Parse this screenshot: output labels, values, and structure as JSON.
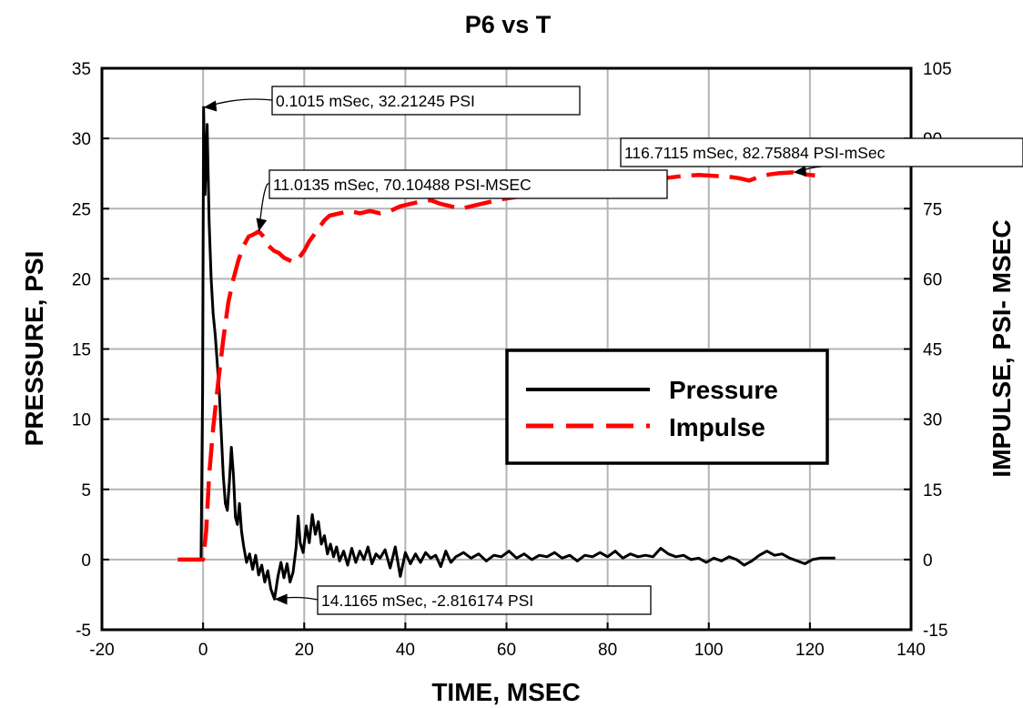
{
  "chart_data": {
    "type": "line",
    "title": "P6 vs T",
    "xlabel": "TIME, MSEC",
    "ylabel": "PRESSURE, PSI",
    "y2label": "IMPULSE, PSI- MSEC",
    "xlim": [
      -20,
      140
    ],
    "ylim": [
      -5,
      35
    ],
    "y2lim": [
      -15,
      105
    ],
    "x_ticks": [
      "-20",
      "0",
      "20",
      "40",
      "60",
      "80",
      "100",
      "120",
      "140"
    ],
    "y_ticks": [
      "-5",
      "0",
      "5",
      "10",
      "15",
      "20",
      "25",
      "30",
      "35"
    ],
    "y2_ticks": [
      "-15",
      "0",
      "15",
      "30",
      "45",
      "60",
      "75",
      "90",
      "105"
    ],
    "grid": true,
    "legend_position": "center-right",
    "series": [
      {
        "name": "Pressure",
        "axis": "left",
        "color": "#000000",
        "style": "solid",
        "points": [
          [
            -0.4,
            0
          ],
          [
            -0.1,
            12
          ],
          [
            0.1015,
            32.21
          ],
          [
            0.4,
            26
          ],
          [
            0.8,
            31
          ],
          [
            1.2,
            24
          ],
          [
            1.6,
            20
          ],
          [
            2,
            17.5
          ],
          [
            2.4,
            16
          ],
          [
            2.8,
            14
          ],
          [
            3.2,
            12
          ],
          [
            3.6,
            9
          ],
          [
            4,
            6
          ],
          [
            4.4,
            4
          ],
          [
            4.8,
            3.5
          ],
          [
            5.2,
            5.5
          ],
          [
            5.6,
            8
          ],
          [
            6,
            6
          ],
          [
            6.4,
            3
          ],
          [
            6.8,
            2.5
          ],
          [
            7.2,
            4
          ],
          [
            7.6,
            2
          ],
          [
            8,
            1
          ],
          [
            8.6,
            -0.2
          ],
          [
            9.2,
            0.4
          ],
          [
            9.8,
            -0.7
          ],
          [
            10.4,
            0.3
          ],
          [
            11,
            -1.1
          ],
          [
            11.6,
            -0.4
          ],
          [
            12.2,
            -1.6
          ],
          [
            12.8,
            -0.8
          ],
          [
            13.4,
            -2.1
          ],
          [
            14.1165,
            -2.816
          ],
          [
            14.8,
            -1.2
          ],
          [
            15.4,
            -0.2
          ],
          [
            16,
            -1.3
          ],
          [
            16.6,
            -0.3
          ],
          [
            17.2,
            -1.6
          ],
          [
            17.8,
            -0.9
          ],
          [
            18.4,
            0.9
          ],
          [
            18.8,
            3.1
          ],
          [
            19.2,
            1.2
          ],
          [
            19.8,
            0.5
          ],
          [
            20.4,
            2.4
          ],
          [
            21,
            1.2
          ],
          [
            21.6,
            3.2
          ],
          [
            22.2,
            1.8
          ],
          [
            22.8,
            2.7
          ],
          [
            23.4,
            1.1
          ],
          [
            24,
            1.7
          ],
          [
            24.6,
            0.4
          ],
          [
            25.2,
            1.1
          ],
          [
            25.8,
            0.2
          ],
          [
            26.4,
            0.9
          ],
          [
            27,
            -0.1
          ],
          [
            27.8,
            0.6
          ],
          [
            28.6,
            -0.4
          ],
          [
            29.4,
            0.8
          ],
          [
            30.2,
            -0.2
          ],
          [
            31,
            0.6
          ],
          [
            31.8,
            0
          ],
          [
            32.6,
            0.9
          ],
          [
            33.4,
            -0.3
          ],
          [
            34.2,
            0.4
          ],
          [
            35,
            0.1
          ],
          [
            36,
            0.7
          ],
          [
            37,
            -0.6
          ],
          [
            38,
            0.9
          ],
          [
            39,
            -1.2
          ],
          [
            40,
            0.5
          ],
          [
            41,
            -0.3
          ],
          [
            42,
            0.4
          ],
          [
            43,
            -0.2
          ],
          [
            44,
            0.5
          ],
          [
            45,
            0.1
          ],
          [
            46,
            0.3
          ],
          [
            47,
            -0.5
          ],
          [
            48,
            0.6
          ],
          [
            49,
            -0.2
          ],
          [
            50,
            0.2
          ],
          [
            51.5,
            0.5
          ],
          [
            53,
            0.1
          ],
          [
            54.5,
            0.4
          ],
          [
            56,
            -0.1
          ],
          [
            57.5,
            0.3
          ],
          [
            59,
            0.2
          ],
          [
            60.5,
            0.6
          ],
          [
            62,
            0.1
          ],
          [
            63.5,
            0.4
          ],
          [
            65,
            0
          ],
          [
            66.5,
            0.3
          ],
          [
            68,
            0.2
          ],
          [
            69.5,
            0.5
          ],
          [
            71,
            0.1
          ],
          [
            72.5,
            0.3
          ],
          [
            74,
            -0.1
          ],
          [
            75.5,
            0.3
          ],
          [
            77,
            0.2
          ],
          [
            78.5,
            0.5
          ],
          [
            80,
            0.2
          ],
          [
            81.5,
            0.6
          ],
          [
            83,
            0.1
          ],
          [
            84.5,
            0.4
          ],
          [
            86,
            0.2
          ],
          [
            87.5,
            0.3
          ],
          [
            89,
            0.2
          ],
          [
            90.5,
            0.8
          ],
          [
            92,
            0.4
          ],
          [
            93.5,
            0.2
          ],
          [
            95,
            0.3
          ],
          [
            96.5,
            0
          ],
          [
            98,
            0.1
          ],
          [
            99.5,
            -0.2
          ],
          [
            101,
            0.1
          ],
          [
            102.5,
            -0.1
          ],
          [
            104,
            0.2
          ],
          [
            105.5,
            0
          ],
          [
            107,
            -0.4
          ],
          [
            108.5,
            -0.1
          ],
          [
            110,
            0.3
          ],
          [
            111.5,
            0.6
          ],
          [
            113,
            0.3
          ],
          [
            114.5,
            0.4
          ],
          [
            116,
            0.1
          ],
          [
            117.5,
            -0.1
          ],
          [
            119,
            -0.3
          ],
          [
            120.5,
            0
          ],
          [
            122,
            0.1
          ],
          [
            123.5,
            0.1
          ],
          [
            125,
            0.1
          ]
        ]
      },
      {
        "name": "Impulse",
        "axis": "right",
        "color": "#ff0000",
        "style": "dashed",
        "points": [
          [
            -5,
            0
          ],
          [
            0,
            0
          ],
          [
            0.6,
            6
          ],
          [
            1.2,
            18
          ],
          [
            2,
            28
          ],
          [
            3,
            38
          ],
          [
            4,
            47
          ],
          [
            5,
            55
          ],
          [
            6,
            60
          ],
          [
            7,
            64
          ],
          [
            8,
            67
          ],
          [
            9,
            69
          ],
          [
            10,
            69.5
          ],
          [
            11.0135,
            70.1
          ],
          [
            12,
            69
          ],
          [
            13,
            67
          ],
          [
            14,
            66
          ],
          [
            15,
            65.5
          ],
          [
            16,
            64.5
          ],
          [
            17,
            64
          ],
          [
            18,
            63.5
          ],
          [
            19,
            64.5
          ],
          [
            20,
            66
          ],
          [
            21,
            68
          ],
          [
            22,
            69.5
          ],
          [
            23,
            71
          ],
          [
            24,
            72.5
          ],
          [
            25,
            73.5
          ],
          [
            27,
            74
          ],
          [
            29,
            74.5
          ],
          [
            31,
            74
          ],
          [
            33,
            74.5
          ],
          [
            35,
            74
          ],
          [
            37,
            74.5
          ],
          [
            39,
            75.5
          ],
          [
            41,
            76
          ],
          [
            43,
            76.5
          ],
          [
            45,
            76.8
          ],
          [
            47,
            76
          ],
          [
            49,
            75.5
          ],
          [
            51,
            75
          ],
          [
            53,
            75.5
          ],
          [
            55,
            76
          ],
          [
            57,
            76.5
          ],
          [
            59,
            77
          ],
          [
            62,
            77.5
          ],
          [
            65,
            78
          ],
          [
            68,
            78.8
          ],
          [
            71,
            79.2
          ],
          [
            74,
            79.5
          ],
          [
            77,
            80
          ],
          [
            80,
            80.6
          ],
          [
            83,
            80.8
          ],
          [
            86,
            81
          ],
          [
            89,
            81.4
          ],
          [
            92,
            81.6
          ],
          [
            95,
            82
          ],
          [
            98,
            82.2
          ],
          [
            101,
            82
          ],
          [
            104,
            81.8
          ],
          [
            106,
            81.5
          ],
          [
            108,
            81
          ],
          [
            110,
            81.8
          ],
          [
            112,
            82.3
          ],
          [
            114,
            82.6
          ],
          [
            116.7115,
            82.76
          ],
          [
            118,
            82.4
          ],
          [
            120,
            82.2
          ],
          [
            121,
            82.1
          ]
        ]
      }
    ],
    "annotations": [
      {
        "text": "0.1015 mSec, 32.21245 PSI",
        "x": 0.1015,
        "y": 32.21245,
        "axis": "left"
      },
      {
        "text": "11.0135 mSec, 70.10488 PSI-MSEC",
        "x": 11.0135,
        "y": 70.10488,
        "axis": "right"
      },
      {
        "text": "116.7115 mSec, 82.75884 PSI-mSec",
        "x": 116.7115,
        "y": 82.75884,
        "axis": "right"
      },
      {
        "text": "14.1165 mSec, -2.816174 PSI",
        "x": 14.1165,
        "y": -2.816174,
        "axis": "left"
      }
    ]
  }
}
